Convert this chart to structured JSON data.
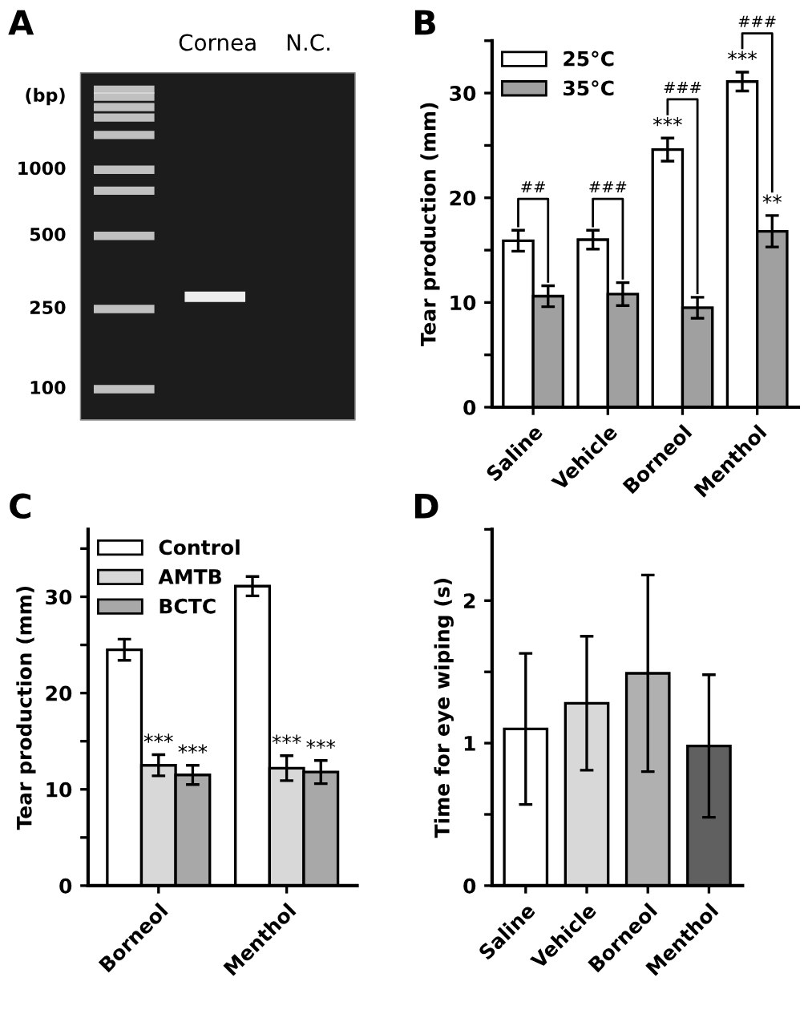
{
  "chart_data": [
    {
      "type": "other",
      "title": "A",
      "annotations": [
        "Cornea",
        "N.C.",
        "(bp)",
        "1000",
        "500",
        "250",
        "100"
      ]
    },
    {
      "type": "bar",
      "title": "B",
      "ylabel": "Tear production (mm)",
      "categories": [
        "Saline",
        "Vehicle",
        "Borneol",
        "Menthol"
      ],
      "series": [
        {
          "name": "25°C",
          "color": "#ffffff",
          "values": [
            15.9,
            16.0,
            24.6,
            31.1
          ],
          "errors": [
            1.0,
            0.9,
            1.1,
            0.9
          ]
        },
        {
          "name": "35°C",
          "color": "#a0a0a0",
          "values": [
            10.6,
            10.8,
            9.5,
            16.8
          ],
          "errors": [
            1.0,
            1.1,
            1.0,
            1.5
          ]
        }
      ],
      "ylim": [
        0,
        35
      ],
      "yticks": [
        0,
        {
          "value": 5,
          "label": null
        },
        10,
        {
          "value": 15,
          "label": null
        },
        20,
        {
          "value": 25,
          "label": null
        },
        30,
        {
          "value": 35,
          "label": null
        }
      ],
      "legend": "top left",
      "annotations": [
        "##",
        "###",
        "###",
        "###",
        "***",
        "***",
        "**"
      ]
    },
    {
      "type": "bar",
      "title": "C",
      "ylabel": "Tear production (mm)",
      "categories": [
        "Borneol",
        "Menthol"
      ],
      "series": [
        {
          "name": "Control",
          "color": "#ffffff",
          "values": [
            24.5,
            31.1
          ],
          "errors": [
            1.1,
            1.0
          ]
        },
        {
          "name": "AMTB",
          "color": "#d8d8d8",
          "values": [
            12.5,
            12.2
          ],
          "errors": [
            1.1,
            1.3
          ]
        },
        {
          "name": "BCTC",
          "color": "#a8a8a8",
          "values": [
            11.5,
            11.8
          ],
          "errors": [
            1.0,
            1.2
          ]
        }
      ],
      "ylim": [
        0,
        37
      ],
      "yticks": [
        0,
        {
          "value": 5,
          "label": null
        },
        10,
        {
          "value": 15,
          "label": null
        },
        20,
        {
          "value": 25,
          "label": null
        },
        30,
        {
          "value": 35,
          "label": null
        }
      ],
      "legend": "top left",
      "annotations": [
        {
          "text": "***",
          "x": "Borneol",
          "y": 13.8
        },
        {
          "text": "***",
          "x": "Borneol",
          "y": 12.7
        },
        {
          "text": "***",
          "x": "Menthol",
          "y": 13.7
        },
        {
          "text": "***",
          "x": "Menthol",
          "y": 13.2
        }
      ]
    },
    {
      "type": "bar",
      "title": "D",
      "ylabel": "Time for eye wiping (s)",
      "categories": [
        "Saline",
        "Vehicle",
        "Borneol",
        "Menthol"
      ],
      "values": [
        1.1,
        1.28,
        1.49,
        0.98
      ],
      "errors": [
        0.53,
        0.47,
        0.69,
        0.5
      ],
      "colors": [
        "#ffffff",
        "#d8d8d8",
        "#b0b0b0",
        "#606060"
      ],
      "ylim": [
        0,
        2.5
      ],
      "yticks": [
        0,
        {
          "value": 0.5,
          "label": null
        },
        1,
        {
          "value": 1.5,
          "label": null
        },
        2,
        {
          "value": 2.5,
          "label": null
        }
      ]
    }
  ]
}
